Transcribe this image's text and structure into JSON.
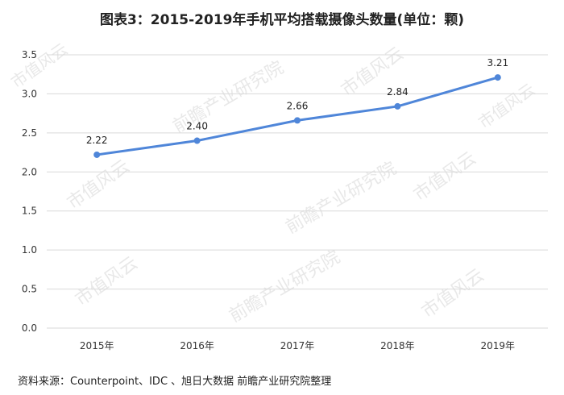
{
  "header": {
    "title": "图表3：2015-2019年手机平均搭载摄像头数量(单位：颗)"
  },
  "footer": {
    "source": "资料来源：Counterpoint、IDC 、旭日大数据 前瞻产业研究院整理"
  },
  "watermarks": {
    "brand": "前瞻产业研究院",
    "market": "市值风云"
  },
  "chart_data": {
    "type": "line",
    "categories": [
      "2015年",
      "2016年",
      "2017年",
      "2018年",
      "2019年"
    ],
    "series": [
      {
        "values": [
          2.22,
          2.4,
          2.66,
          2.84,
          3.21
        ]
      }
    ],
    "data_labels": [
      "2.22",
      "2.40",
      "2.66",
      "2.84",
      "3.21"
    ],
    "y_ticks": [
      "0.0",
      "0.5",
      "1.0",
      "1.5",
      "2.0",
      "2.5",
      "3.0",
      "3.5"
    ],
    "ylim": [
      0,
      3.5
    ],
    "grid": true,
    "line_color": "#4f86d9",
    "grid_color": "#d9d9d9"
  }
}
